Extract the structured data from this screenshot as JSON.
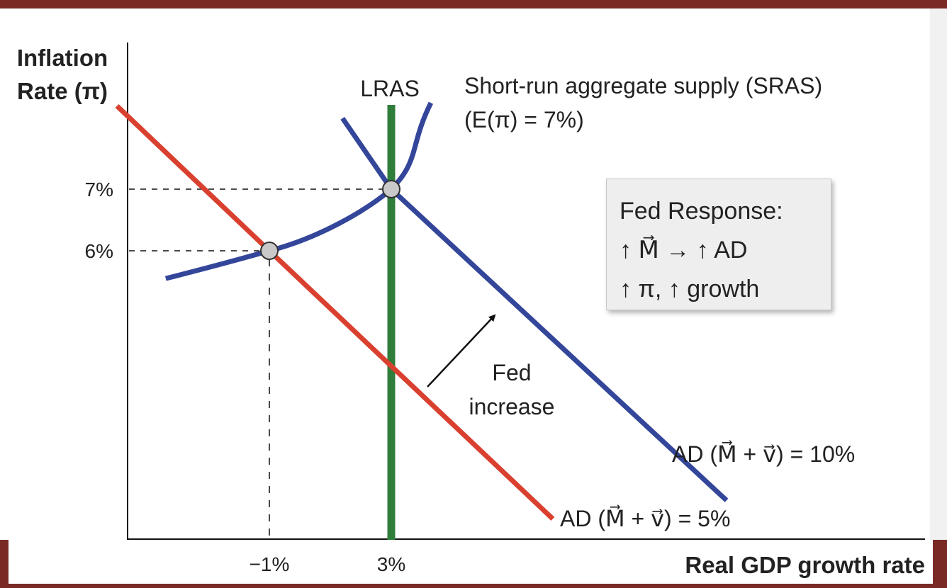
{
  "chart_data": {
    "type": "line",
    "xlabel": "Real GDP growth rate",
    "ylabel_line1": "Inflation",
    "ylabel_line2": "Rate (π)",
    "x_tick_labels": [
      "−1%",
      "3%"
    ],
    "x_ticks": [
      -1,
      3
    ],
    "y_tick_labels": [
      "6%",
      "7%"
    ],
    "y_ticks": [
      6,
      7
    ],
    "series": [
      {
        "name": "LRAS",
        "kind": "vertical",
        "x": 3,
        "color": "#2e7d3a"
      },
      {
        "name": "Short-run aggregate supply (SRAS)",
        "subtitle": "(E(π) = 7%)",
        "color": "#34469a",
        "points": [
          [
            -4.4,
            5.55
          ],
          [
            -1,
            6
          ],
          [
            3,
            7
          ],
          [
            4.3,
            8.4
          ]
        ]
      },
      {
        "name": "AD (M⃗ + v⃗) = 5%",
        "color": "#d9402f",
        "points": [
          [
            -6,
            8.35
          ],
          [
            -1,
            6
          ],
          [
            8.3,
            1.65
          ]
        ]
      },
      {
        "name": "AD (M⃗ + v⃗) = 10%",
        "color": "#34469a",
        "points": [
          [
            1.4,
            8.15
          ],
          [
            3,
            7
          ],
          [
            14,
            1.95
          ]
        ]
      }
    ],
    "equilibria": [
      [
        -1,
        6
      ],
      [
        3,
        7
      ]
    ],
    "annotation": {
      "line1": "Fed",
      "line2": "increase"
    }
  },
  "fed_box": {
    "line1": "Fed Response:",
    "line2": "↑ M⃗ → ↑ AD",
    "line3": "↑ π, ↑ growth"
  },
  "colors": {
    "frame": "#7a2a24",
    "lras": "#2e7d3a",
    "blue": "#34469a",
    "red": "#d9402f"
  }
}
